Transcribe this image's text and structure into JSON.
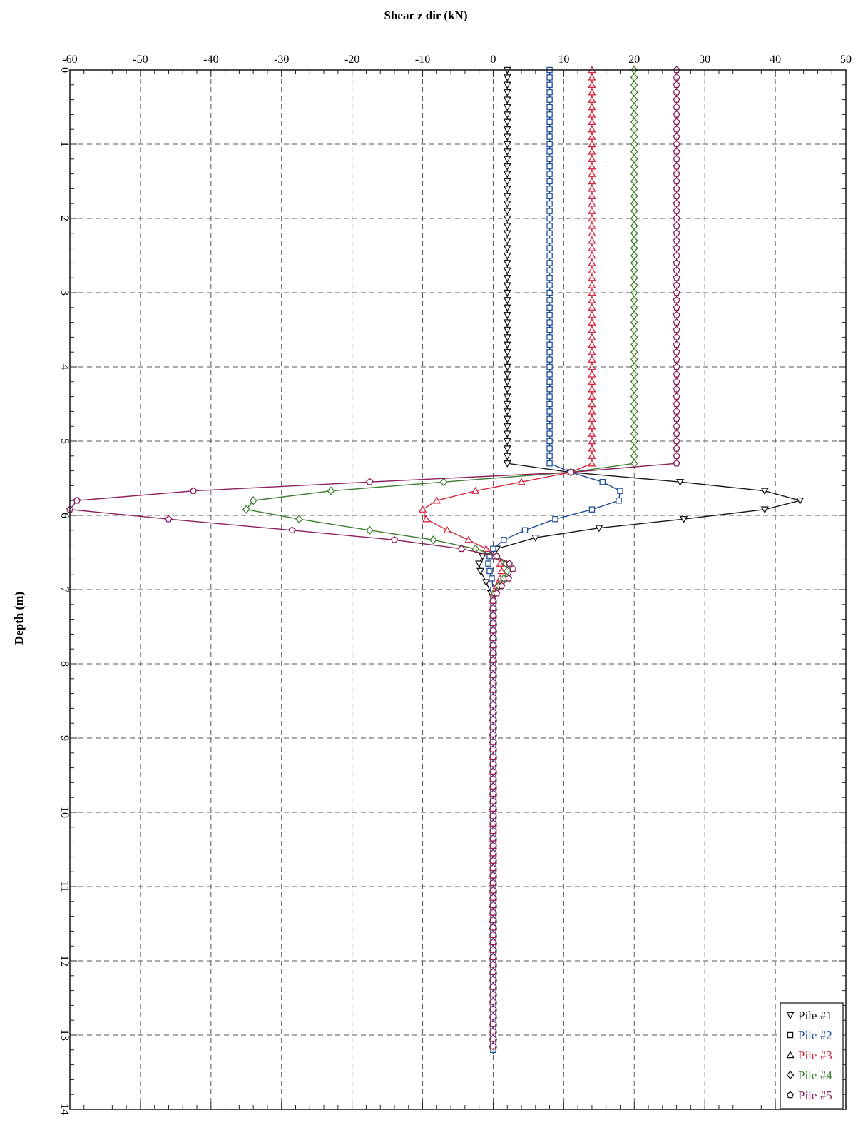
{
  "chart_data": {
    "type": "line",
    "xlabel": "Shear z dir (kN)",
    "ylabel": "Depth (m)",
    "xlim": [
      -60,
      50
    ],
    "ylim": [
      0,
      14
    ],
    "y_inverted": true,
    "x_ticks": [
      "-60",
      "-50",
      "-40",
      "-30",
      "-20",
      "-10",
      "0",
      "10",
      "20",
      "30",
      "40",
      "50"
    ],
    "y_ticks": [
      "0",
      "1",
      "2",
      "3",
      "4",
      "5",
      "6",
      "7",
      "8",
      "9",
      "10",
      "11",
      "12",
      "13",
      "14"
    ],
    "grid": true,
    "legend_position": "bottom-right",
    "marker_interval_m": 0.1,
    "series": [
      {
        "name": "Pile #1",
        "color": "#1a1a1a",
        "marker": "triangle-down",
        "const_value": 2.0,
        "points": [
          [
            2.0,
            5.3
          ],
          [
            11.0,
            5.42
          ],
          [
            26.5,
            5.55
          ],
          [
            38.5,
            5.67
          ],
          [
            43.5,
            5.8
          ],
          [
            38.5,
            5.92
          ],
          [
            27.0,
            6.05
          ],
          [
            15.0,
            6.17
          ],
          [
            6.0,
            6.3
          ],
          [
            0.5,
            6.45
          ],
          [
            -1.5,
            6.55
          ],
          [
            -2.0,
            6.65
          ],
          [
            -1.8,
            6.75
          ],
          [
            -1.0,
            6.9
          ],
          [
            -0.3,
            7.05
          ],
          [
            0.0,
            7.2
          ],
          [
            0.0,
            13.2
          ]
        ]
      },
      {
        "name": "Pile #2",
        "color": "#1f4e9a",
        "marker": "square",
        "const_value": 8.0,
        "points": [
          [
            8.0,
            5.3
          ],
          [
            11.0,
            5.42
          ],
          [
            15.5,
            5.55
          ],
          [
            18.0,
            5.67
          ],
          [
            17.8,
            5.8
          ],
          [
            14.0,
            5.92
          ],
          [
            8.8,
            6.05
          ],
          [
            4.5,
            6.2
          ],
          [
            1.5,
            6.33
          ],
          [
            0.0,
            6.45
          ],
          [
            -0.5,
            6.55
          ],
          [
            -0.7,
            6.65
          ],
          [
            -0.5,
            6.75
          ],
          [
            -0.2,
            6.85
          ],
          [
            0.0,
            7.0
          ],
          [
            0.0,
            13.2
          ]
        ]
      },
      {
        "name": "Pile #3",
        "color": "#d6263f",
        "marker": "triangle-up",
        "const_value": 14.0,
        "points": [
          [
            14.0,
            5.3
          ],
          [
            11.0,
            5.42
          ],
          [
            4.0,
            5.55
          ],
          [
            -2.5,
            5.67
          ],
          [
            -8.0,
            5.8
          ],
          [
            -10.0,
            5.92
          ],
          [
            -9.5,
            6.05
          ],
          [
            -6.5,
            6.2
          ],
          [
            -3.5,
            6.33
          ],
          [
            -1.0,
            6.45
          ],
          [
            0.5,
            6.55
          ],
          [
            1.0,
            6.65
          ],
          [
            1.2,
            6.75
          ],
          [
            1.0,
            6.85
          ],
          [
            0.5,
            6.95
          ],
          [
            0.0,
            7.05
          ],
          [
            0.0,
            13.2
          ]
        ]
      },
      {
        "name": "Pile #4",
        "color": "#3a7d2c",
        "marker": "diamond",
        "const_value": 20.0,
        "points": [
          [
            20.0,
            5.3
          ],
          [
            11.0,
            5.42
          ],
          [
            -7.0,
            5.55
          ],
          [
            -23.0,
            5.67
          ],
          [
            -34.0,
            5.8
          ],
          [
            -35.0,
            5.92
          ],
          [
            -27.5,
            6.05
          ],
          [
            -17.5,
            6.2
          ],
          [
            -8.5,
            6.33
          ],
          [
            -2.5,
            6.45
          ],
          [
            0.5,
            6.55
          ],
          [
            1.8,
            6.65
          ],
          [
            2.0,
            6.75
          ],
          [
            1.5,
            6.85
          ],
          [
            0.8,
            6.95
          ],
          [
            0.2,
            7.05
          ],
          [
            0.0,
            7.15
          ],
          [
            0.0,
            13.2
          ]
        ]
      },
      {
        "name": "Pile #5",
        "color": "#8b1e5e",
        "marker": "pentagon",
        "const_value": 26.0,
        "points": [
          [
            26.0,
            5.3
          ],
          [
            11.0,
            5.42
          ],
          [
            -17.5,
            5.55
          ],
          [
            -42.5,
            5.67
          ],
          [
            -59.0,
            5.8
          ],
          [
            -60.0,
            5.92
          ],
          [
            -46.0,
            6.05
          ],
          [
            -28.5,
            6.2
          ],
          [
            -14.0,
            6.33
          ],
          [
            -4.5,
            6.45
          ],
          [
            0.5,
            6.55
          ],
          [
            2.3,
            6.65
          ],
          [
            2.8,
            6.72
          ],
          [
            2.2,
            6.85
          ],
          [
            1.2,
            6.95
          ],
          [
            0.5,
            7.05
          ],
          [
            0.0,
            7.15
          ],
          [
            0.0,
            13.2
          ]
        ]
      }
    ]
  }
}
